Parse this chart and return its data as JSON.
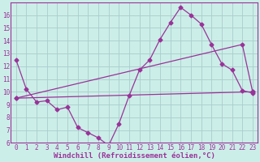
{
  "xlabel": "Windchill (Refroidissement éolien,°C)",
  "bg_color": "#cceee8",
  "line_color": "#993399",
  "grid_color": "#aacccc",
  "spine_color": "#993399",
  "series1_x": [
    0,
    1,
    2,
    3,
    4,
    5,
    6,
    7,
    8,
    9,
    10,
    11,
    12,
    13,
    14,
    15,
    16,
    17,
    18,
    19,
    20,
    21,
    22,
    23
  ],
  "series1_y": [
    12.5,
    10.2,
    9.2,
    9.3,
    8.6,
    8.8,
    7.2,
    6.8,
    6.4,
    5.8,
    7.5,
    9.7,
    11.7,
    12.5,
    14.1,
    15.4,
    16.6,
    16.0,
    15.3,
    13.7,
    12.2,
    11.7,
    10.1,
    9.9
  ],
  "series2_x": [
    0,
    22,
    23
  ],
  "series2_y": [
    9.5,
    13.7,
    10.0
  ],
  "series3_x": [
    0,
    23
  ],
  "series3_y": [
    9.5,
    10.0
  ],
  "ylim": [
    6,
    17
  ],
  "xlim": [
    -0.5,
    23.5
  ],
  "yticks": [
    6,
    7,
    8,
    9,
    10,
    11,
    12,
    13,
    14,
    15,
    16
  ],
  "xticks": [
    0,
    1,
    2,
    3,
    4,
    5,
    6,
    7,
    8,
    9,
    10,
    11,
    12,
    13,
    14,
    15,
    16,
    17,
    18,
    19,
    20,
    21,
    22,
    23
  ],
  "marker": "D",
  "markersize": 2.5,
  "linewidth": 0.9,
  "xlabel_fontsize": 6.5,
  "tick_fontsize": 5.5
}
